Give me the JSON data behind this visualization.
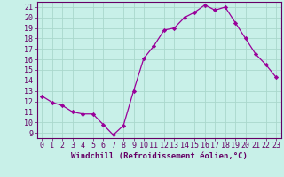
{
  "x": [
    0,
    1,
    2,
    3,
    4,
    5,
    6,
    7,
    8,
    9,
    10,
    11,
    12,
    13,
    14,
    15,
    16,
    17,
    18,
    19,
    20,
    21,
    22,
    23
  ],
  "y": [
    12.5,
    11.9,
    11.6,
    11.0,
    10.8,
    10.8,
    9.8,
    8.8,
    9.7,
    13.0,
    16.1,
    17.3,
    18.8,
    19.0,
    20.0,
    20.5,
    21.2,
    20.7,
    21.0,
    19.5,
    18.0,
    16.5,
    15.5,
    14.3
  ],
  "line_color": "#990099",
  "marker": "D",
  "marker_size": 2.2,
  "bg_color": "#c8f0e8",
  "grid_color": "#aad8cc",
  "xlabel": "Windchill (Refroidissement éolien,°C)",
  "ylabel_ticks": [
    9,
    10,
    11,
    12,
    13,
    14,
    15,
    16,
    17,
    18,
    19,
    20,
    21
  ],
  "xlim": [
    -0.5,
    23.5
  ],
  "ylim": [
    8.5,
    21.5
  ],
  "xticks": [
    0,
    1,
    2,
    3,
    4,
    5,
    6,
    7,
    8,
    9,
    10,
    11,
    12,
    13,
    14,
    15,
    16,
    17,
    18,
    19,
    20,
    21,
    22,
    23
  ],
  "xlabel_fontsize": 6.5,
  "tick_fontsize": 6.0,
  "label_color": "#660066",
  "spine_color": "#660066"
}
